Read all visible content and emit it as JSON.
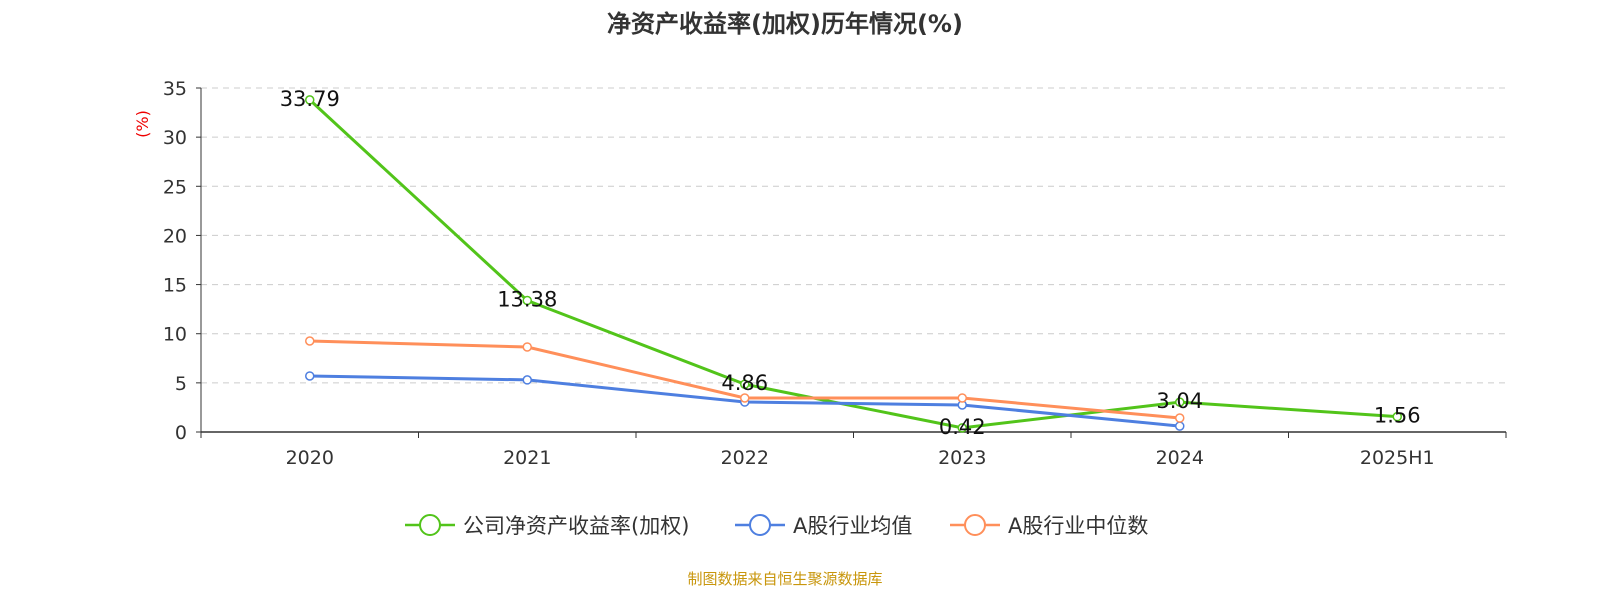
{
  "chart_data": {
    "type": "line",
    "title": "净资产收益率(加权)历年情况(%)",
    "ylabel": "(%)",
    "xlabel": "",
    "ylim": [
      0,
      35
    ],
    "yticks": [
      0,
      5,
      10,
      15,
      20,
      25,
      30,
      35
    ],
    "categories": [
      "2020",
      "2021",
      "2022",
      "2023",
      "2024",
      "2025H1"
    ],
    "grid": true,
    "legend_position": "bottom",
    "series": [
      {
        "name": "公司净资产收益率(加权)",
        "color": "#52c41a",
        "values": [
          33.79,
          13.38,
          4.86,
          0.42,
          3.04,
          1.56
        ],
        "labels": [
          "33.79",
          "13.38",
          "4.86",
          "0.42",
          "3.04",
          "1.56"
        ]
      },
      {
        "name": "A股行业均值",
        "color": "#4e7fe0",
        "values": [
          5.7,
          5.3,
          3.05,
          2.75,
          0.6,
          null
        ]
      },
      {
        "name": "A股行业中位数",
        "color": "#ff8f5a",
        "values": [
          9.26,
          8.65,
          3.46,
          3.46,
          1.42,
          null
        ]
      }
    ]
  },
  "source": "制图数据来自恒生聚源数据库"
}
